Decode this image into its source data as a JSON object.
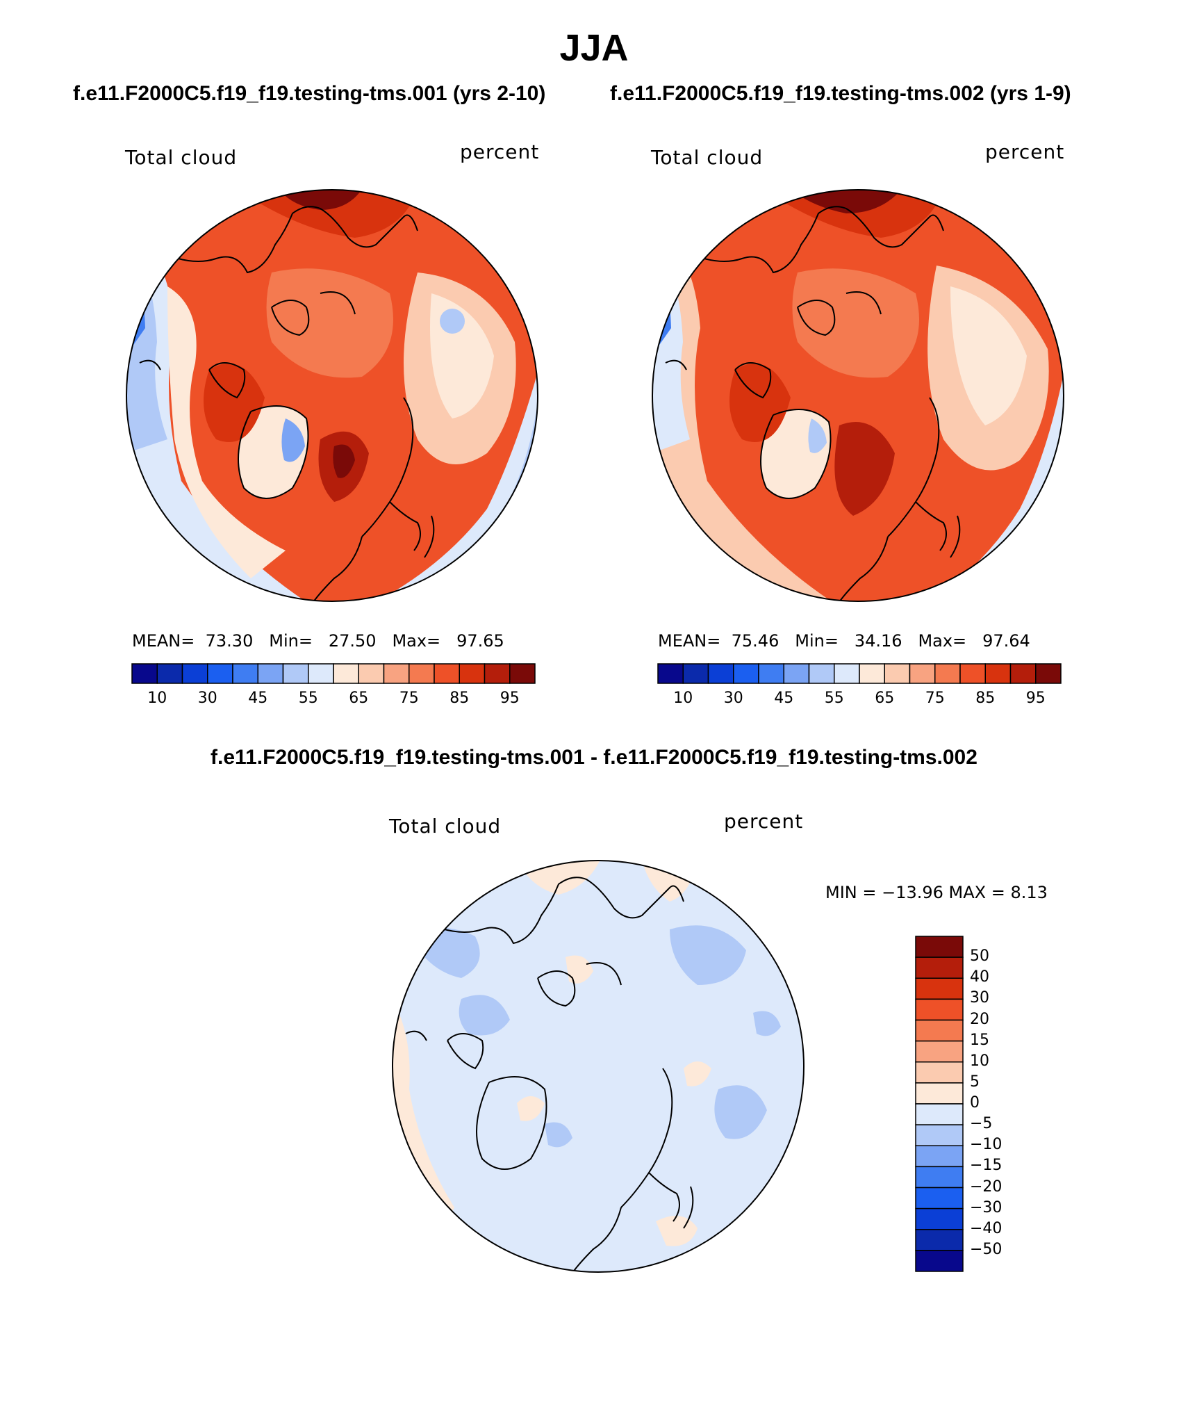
{
  "season": "JJA",
  "case1_title": "f.e11.F2000C5.f19_f19.testing-tms.001 (yrs 2-10)",
  "case2_title": "f.e11.F2000C5.f19_f19.testing-tms.002 (yrs 1-9)",
  "diff_title": "f.e11.F2000C5.f19_f19.testing-tms.001 - f.e11.F2000C5.f19_f19.testing-tms.002",
  "panels": {
    "p1": {
      "variable": "Total cloud",
      "units": "percent",
      "mean_label": "MEAN=",
      "mean": "73.30",
      "min_label": "Min=",
      "min": "27.50",
      "max_label": "Max=",
      "max": "97.65"
    },
    "p2": {
      "variable": "Total cloud",
      "units": "percent",
      "mean_label": "MEAN=",
      "mean": "75.46",
      "min_label": "Min=",
      "min": "34.16",
      "max_label": "Max=",
      "max": "97.64"
    },
    "p3": {
      "variable": "Total cloud",
      "units": "percent",
      "minmax": "MIN = −13.96 MAX =    8.13"
    }
  },
  "colorbar_h": {
    "colors": [
      "#08088c",
      "#0b2aab",
      "#0b3fd6",
      "#1b5ff0",
      "#3f7df2",
      "#7ba4f4",
      "#b0c9f7",
      "#dde9fb",
      "#fde9d9",
      "#fbcbb0",
      "#f8a381",
      "#f47a50",
      "#ee5128",
      "#d8330e",
      "#b41e0b",
      "#7a0a08"
    ],
    "tick_labels": [
      "10",
      "30",
      "45",
      "55",
      "65",
      "75",
      "85",
      "95"
    ]
  },
  "colorbar_v": {
    "colors": [
      "#7a0a08",
      "#b41e0b",
      "#d8330e",
      "#ee5128",
      "#f47a50",
      "#f8a381",
      "#fbcbb0",
      "#fde9d9",
      "#dde9fb",
      "#b0c9f7",
      "#7ba4f4",
      "#3f7df2",
      "#1b5ff0",
      "#0b3fd6",
      "#0b2aab",
      "#08088c"
    ],
    "tick_labels": [
      "50",
      "40",
      "30",
      "20",
      "15",
      "10",
      "5",
      "0",
      "−5",
      "−10",
      "−15",
      "−20",
      "−30",
      "−40",
      "−50"
    ]
  },
  "icons": {
    "map": "polar-stereographic-map-icon"
  }
}
